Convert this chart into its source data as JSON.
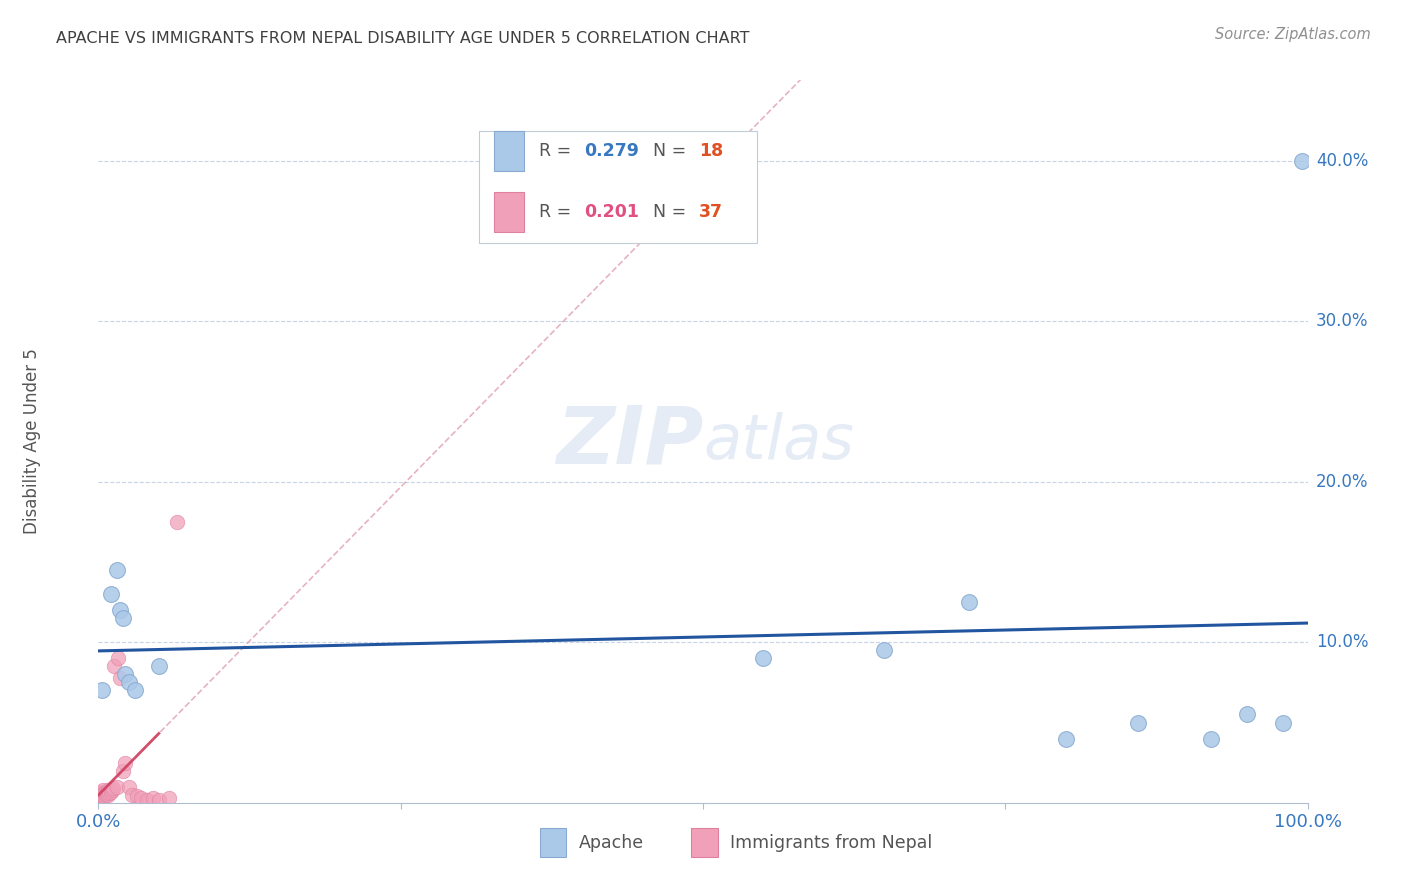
{
  "title": "APACHE VS IMMIGRANTS FROM NEPAL DISABILITY AGE UNDER 5 CORRELATION CHART",
  "source": "Source: ZipAtlas.com",
  "ylabel": "Disability Age Under 5",
  "xlim": [
    0,
    1.0
  ],
  "ylim": [
    0,
    0.45
  ],
  "apache_R": 0.279,
  "apache_N": 18,
  "nepal_R": 0.201,
  "nepal_N": 37,
  "apache_color": "#aac8e8",
  "apache_edge_color": "#88aad0",
  "apache_line_color": "#2255a0",
  "nepal_color": "#f0a0b8",
  "nepal_edge_color": "#e080a0",
  "nepal_line_color": "#d04060",
  "nepal_dash_color": "#e0a0b0",
  "background_color": "#ffffff",
  "grid_color": "#c8d4e4",
  "title_color": "#404040",
  "tick_label_color": "#3878c0",
  "legend_R_color_apache": "#3878c0",
  "legend_N_color_apache": "#e05020",
  "legend_R_color_nepal": "#e05080",
  "legend_N_color_nepal": "#e05020",
  "watermark_color": "#ccdaee",
  "apache_x": [
    0.003,
    0.01,
    0.015,
    0.018,
    0.02,
    0.022,
    0.025,
    0.03,
    0.05,
    0.55,
    0.65,
    0.72,
    0.8,
    0.86,
    0.92,
    0.95,
    0.98,
    0.995
  ],
  "apache_y": [
    0.07,
    0.13,
    0.145,
    0.12,
    0.115,
    0.08,
    0.075,
    0.07,
    0.085,
    0.09,
    0.095,
    0.125,
    0.04,
    0.05,
    0.04,
    0.055,
    0.05,
    0.4
  ],
  "nepal_x": [
    0.001,
    0.001,
    0.001,
    0.001,
    0.002,
    0.002,
    0.002,
    0.003,
    0.003,
    0.004,
    0.004,
    0.005,
    0.005,
    0.006,
    0.006,
    0.007,
    0.008,
    0.008,
    0.009,
    0.01,
    0.011,
    0.012,
    0.013,
    0.015,
    0.016,
    0.018,
    0.02,
    0.022,
    0.025,
    0.028,
    0.032,
    0.035,
    0.04,
    0.045,
    0.05,
    0.058,
    0.065
  ],
  "nepal_y": [
    0.001,
    0.002,
    0.003,
    0.004,
    0.003,
    0.005,
    0.006,
    0.004,
    0.007,
    0.005,
    0.008,
    0.004,
    0.006,
    0.005,
    0.007,
    0.006,
    0.005,
    0.008,
    0.006,
    0.007,
    0.008,
    0.009,
    0.085,
    0.01,
    0.09,
    0.078,
    0.02,
    0.025,
    0.01,
    0.005,
    0.004,
    0.003,
    0.002,
    0.003,
    0.002,
    0.003,
    0.175
  ]
}
